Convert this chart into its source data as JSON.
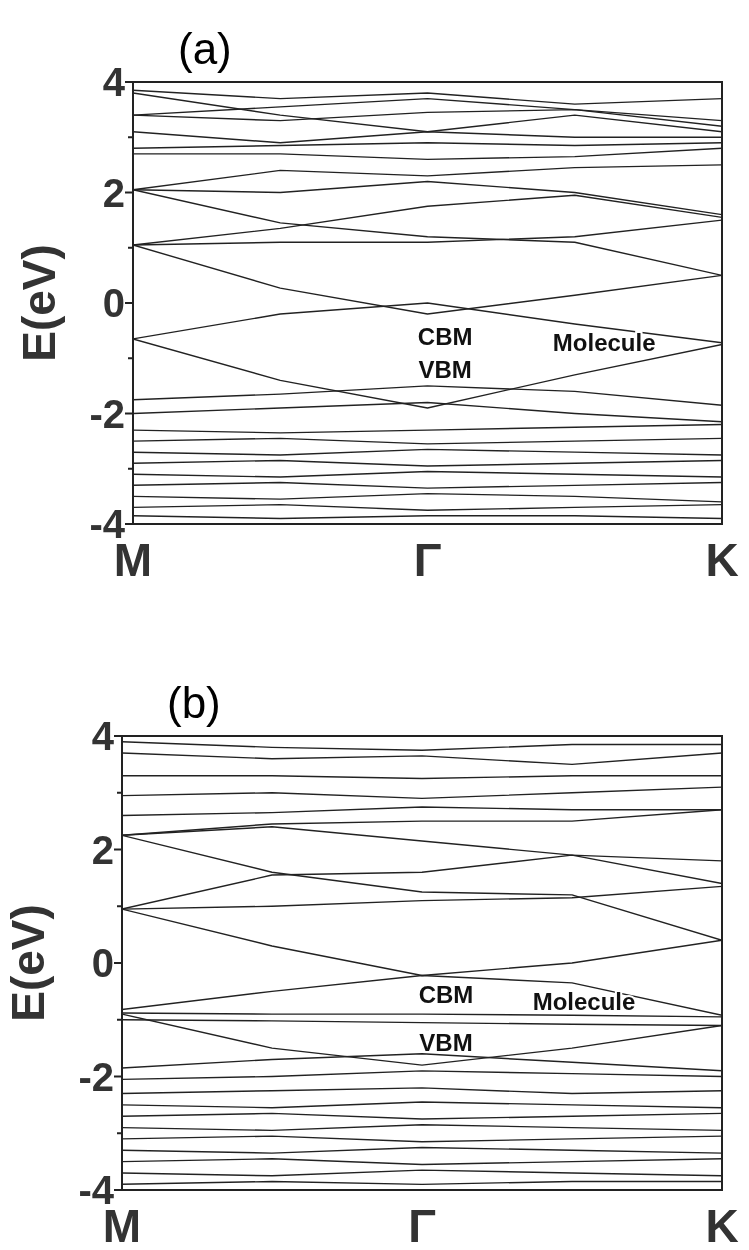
{
  "chart_data": [
    {
      "type": "line",
      "title": "(a)",
      "ylabel": "E(eV)",
      "categories": [
        "M",
        null,
        "Γ",
        null,
        "K"
      ],
      "ylim": [
        -4,
        4
      ],
      "yticks": [
        -4,
        {
          "value": -3,
          "label": null
        },
        -2,
        {
          "value": -1,
          "label": null
        },
        0,
        {
          "value": 1,
          "label": null
        },
        2,
        {
          "value": 3,
          "label": null
        },
        4
      ],
      "annotations": [
        "CBM",
        "VBM",
        "Molecule"
      ],
      "series": [
        {
          "color": "#222222",
          "values": [
            1.05,
            0.27,
            -0.2,
            0.14,
            0.5
          ]
        },
        {
          "color": "#222222",
          "values": [
            -0.65,
            -0.2,
            0,
            -0.38,
            -0.72
          ]
        },
        {
          "color": "#222222",
          "values": [
            -0.65,
            -1.4,
            -1.9,
            -1.3,
            -0.75
          ]
        },
        {
          "color": "#222222",
          "values": [
            -1.75,
            -1.65,
            -1.5,
            -1.6,
            -1.85
          ]
        },
        {
          "color": "#222222",
          "values": [
            -2.0,
            -1.9,
            -1.8,
            -2.0,
            -2.15
          ]
        },
        {
          "color": "#222222",
          "values": [
            1.05,
            1.35,
            1.75,
            1.95,
            1.55
          ]
        },
        {
          "color": "#222222",
          "values": [
            1.05,
            1.1,
            1.1,
            1.2,
            1.5
          ]
        },
        {
          "color": "#222222",
          "values": [
            2.05,
            1.45,
            1.2,
            1.1,
            0.5
          ]
        },
        {
          "color": "#222222",
          "values": [
            2.05,
            2.4,
            2.3,
            2.45,
            2.5
          ]
        },
        {
          "color": "#222222",
          "values": [
            2.05,
            2.0,
            2.2,
            2.0,
            1.6
          ]
        },
        {
          "color": "#222222",
          "values": [
            2.7,
            2.7,
            2.6,
            2.65,
            2.8
          ]
        },
        {
          "color": "#222222",
          "values": [
            2.8,
            2.85,
            2.9,
            2.85,
            2.9
          ]
        },
        {
          "color": "#222222",
          "values": [
            3.1,
            2.9,
            3.1,
            3.0,
            3.0
          ]
        },
        {
          "color": "#222222",
          "values": [
            3.4,
            3.55,
            3.7,
            3.5,
            3.3
          ]
        },
        {
          "color": "#222222",
          "values": [
            3.4,
            3.3,
            3.45,
            3.5,
            3.2
          ]
        },
        {
          "color": "#222222",
          "values": [
            3.8,
            3.4,
            3.1,
            3.4,
            3.1
          ]
        },
        {
          "color": "#222222",
          "values": [
            3.85,
            3.7,
            3.8,
            3.6,
            3.7
          ]
        },
        {
          "color": "#222222",
          "values": [
            -2.3,
            -2.35,
            -2.3,
            -2.25,
            -2.2
          ]
        },
        {
          "color": "#222222",
          "values": [
            -2.5,
            -2.45,
            -2.55,
            -2.5,
            -2.45
          ]
        },
        {
          "color": "#222222",
          "values": [
            -2.7,
            -2.75,
            -2.65,
            -2.7,
            -2.75
          ]
        },
        {
          "color": "#222222",
          "values": [
            -2.9,
            -2.85,
            -2.95,
            -2.9,
            -2.85
          ]
        },
        {
          "color": "#222222",
          "values": [
            -3.1,
            -3.15,
            -3.05,
            -3.1,
            -3.15
          ]
        },
        {
          "color": "#222222",
          "values": [
            -3.3,
            -3.25,
            -3.35,
            -3.3,
            -3.25
          ]
        },
        {
          "color": "#222222",
          "values": [
            -3.5,
            -3.55,
            -3.45,
            -3.5,
            -3.6
          ]
        },
        {
          "color": "#222222",
          "values": [
            -3.7,
            -3.65,
            -3.75,
            -3.7,
            -3.65
          ]
        },
        {
          "color": "#222222",
          "values": [
            -3.85,
            -3.9,
            -3.85,
            -3.85,
            -3.9
          ]
        }
      ]
    },
    {
      "type": "line",
      "title": "(b)",
      "ylabel": "E(eV)",
      "categories": [
        "M",
        null,
        "Γ",
        null,
        "K"
      ],
      "ylim": [
        -4,
        4
      ],
      "yticks": [
        -4,
        {
          "value": -3,
          "label": null
        },
        -2,
        {
          "value": -1,
          "label": null
        },
        0,
        {
          "value": 1,
          "label": null
        },
        2,
        {
          "value": 3,
          "label": null
        },
        4
      ],
      "annotations": [
        "CBM",
        "VBM",
        "Molecule"
      ],
      "series": [
        {
          "color": "#222222",
          "values": [
            0.95,
            0.3,
            -0.22,
            0.0,
            0.4
          ]
        },
        {
          "color": "#222222",
          "values": [
            -0.82,
            -0.5,
            -0.22,
            -0.35,
            -0.92
          ]
        },
        {
          "color": "#222222",
          "values": [
            -0.88,
            -0.9,
            -0.9,
            -0.92,
            -0.95
          ]
        },
        {
          "color": "#222222",
          "values": [
            -1.0,
            -1.02,
            -1.05,
            -1.08,
            -1.1
          ]
        },
        {
          "color": "#222222",
          "values": [
            -0.9,
            -1.5,
            -1.8,
            -1.5,
            -1.1
          ]
        },
        {
          "color": "#222222",
          "values": [
            -1.85,
            -1.7,
            -1.6,
            -1.75,
            -1.9
          ]
        },
        {
          "color": "#222222",
          "values": [
            -2.05,
            -2.0,
            -1.9,
            -1.95,
            -2.0
          ]
        },
        {
          "color": "#222222",
          "values": [
            0.95,
            1.55,
            1.6,
            1.9,
            1.8
          ]
        },
        {
          "color": "#222222",
          "values": [
            0.95,
            1.0,
            1.1,
            1.15,
            1.35
          ]
        },
        {
          "color": "#222222",
          "values": [
            2.25,
            1.6,
            1.25,
            1.2,
            0.4
          ]
        },
        {
          "color": "#222222",
          "values": [
            2.25,
            2.4,
            2.15,
            1.9,
            1.4
          ]
        },
        {
          "color": "#222222",
          "values": [
            2.25,
            2.45,
            2.5,
            2.5,
            2.7
          ]
        },
        {
          "color": "#222222",
          "values": [
            2.6,
            2.65,
            2.75,
            2.7,
            2.7
          ]
        },
        {
          "color": "#222222",
          "values": [
            2.95,
            3.0,
            2.9,
            3.0,
            3.1
          ]
        },
        {
          "color": "#222222",
          "values": [
            3.3,
            3.3,
            3.25,
            3.3,
            3.3
          ]
        },
        {
          "color": "#222222",
          "values": [
            3.7,
            3.6,
            3.65,
            3.5,
            3.7
          ]
        },
        {
          "color": "#222222",
          "values": [
            3.9,
            3.8,
            3.75,
            3.85,
            3.85
          ]
        },
        {
          "color": "#222222",
          "values": [
            -2.3,
            -2.25,
            -2.2,
            -2.3,
            -2.25
          ]
        },
        {
          "color": "#222222",
          "values": [
            -2.5,
            -2.55,
            -2.45,
            -2.5,
            -2.55
          ]
        },
        {
          "color": "#222222",
          "values": [
            -2.7,
            -2.65,
            -2.75,
            -2.7,
            -2.65
          ]
        },
        {
          "color": "#222222",
          "values": [
            -2.9,
            -2.95,
            -2.85,
            -2.9,
            -2.95
          ]
        },
        {
          "color": "#222222",
          "values": [
            -3.1,
            -3.05,
            -3.15,
            -3.1,
            -3.05
          ]
        },
        {
          "color": "#222222",
          "values": [
            -3.3,
            -3.35,
            -3.25,
            -3.3,
            -3.35
          ]
        },
        {
          "color": "#222222",
          "values": [
            -3.5,
            -3.45,
            -3.55,
            -3.5,
            -3.45
          ]
        },
        {
          "color": "#222222",
          "values": [
            -3.7,
            -3.75,
            -3.65,
            -3.7,
            -3.75
          ]
        },
        {
          "color": "#222222",
          "values": [
            -3.9,
            -3.85,
            -3.9,
            -3.85,
            -3.85
          ]
        }
      ]
    }
  ]
}
